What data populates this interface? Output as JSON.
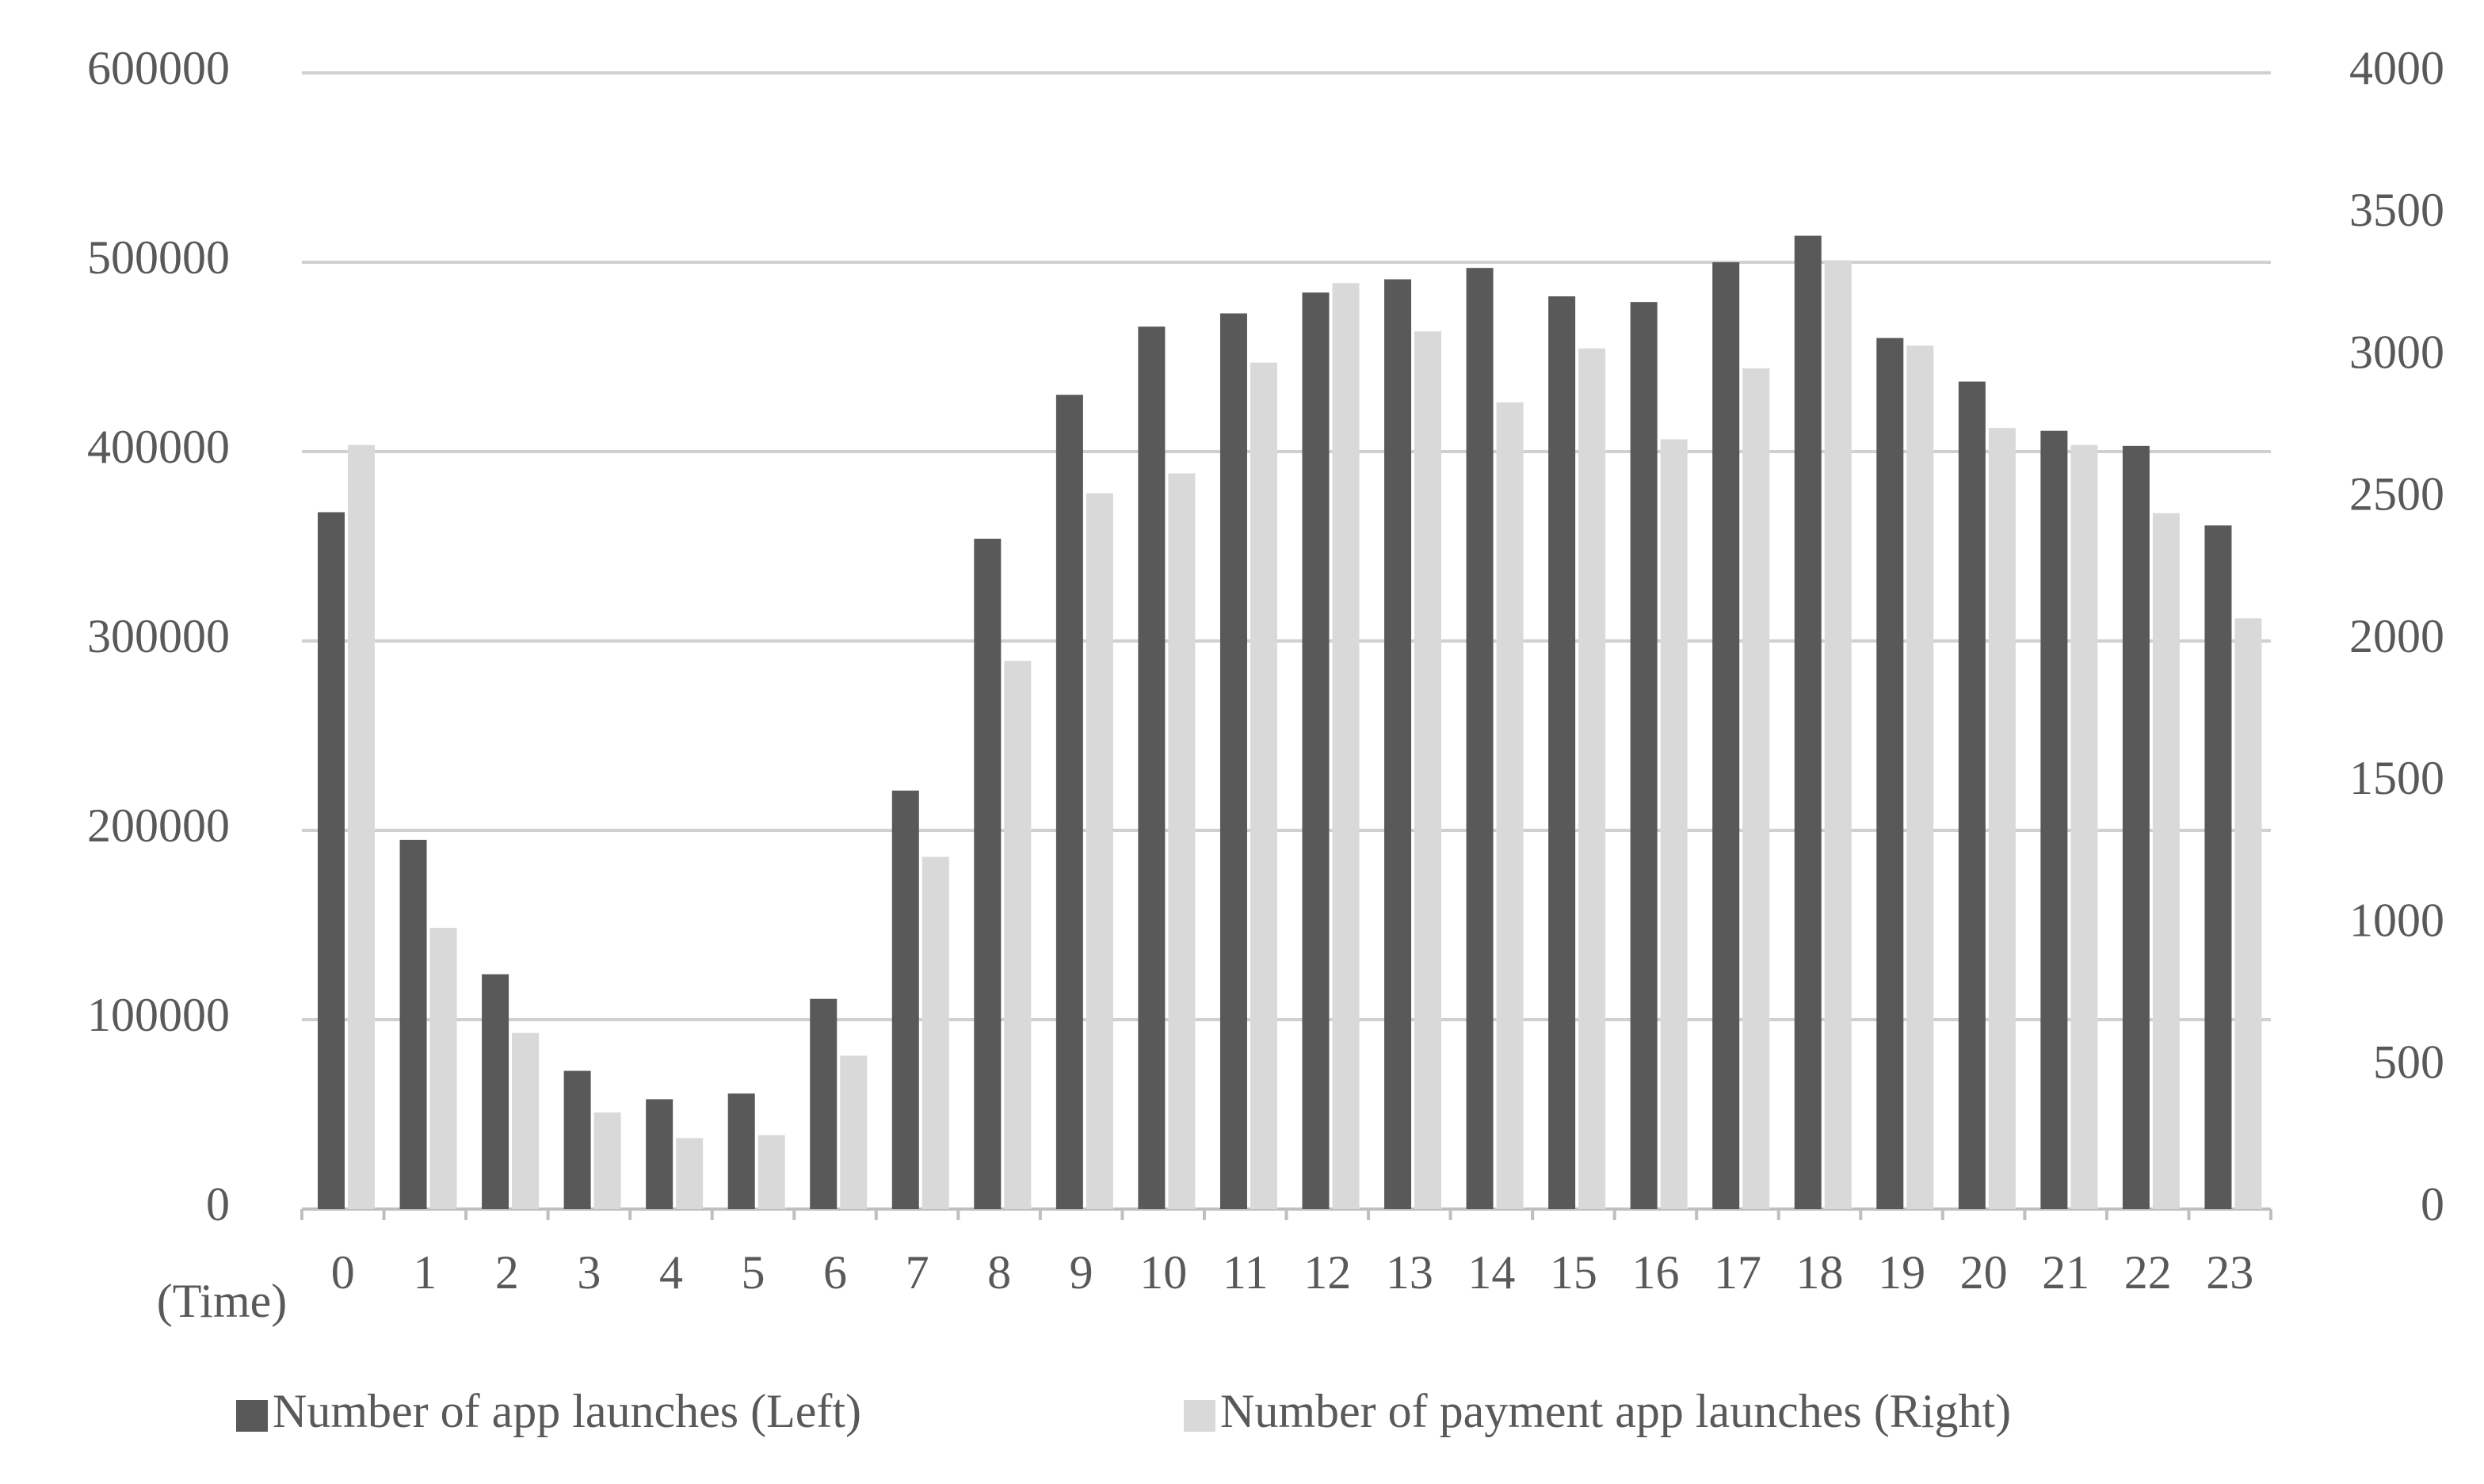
{
  "chart_data": {
    "type": "bar",
    "x_label": "(Time)",
    "categories": [
      "0",
      "1",
      "2",
      "3",
      "4",
      "5",
      "6",
      "7",
      "8",
      "9",
      "10",
      "11",
      "12",
      "13",
      "14",
      "15",
      "16",
      "17",
      "18",
      "19",
      "20",
      "21",
      "22",
      "23"
    ],
    "series": [
      {
        "name": "Number of app launches (Left)",
        "color": "#595959",
        "values": [
          368000,
          195000,
          124000,
          73000,
          58000,
          61000,
          111000,
          221000,
          354000,
          430000,
          466000,
          473000,
          484000,
          491000,
          497000,
          482000,
          479000,
          500000,
          514000,
          460000,
          437000,
          411000,
          403000,
          361000
        ]
      },
      {
        "name": "Number of payment app launches (Right)",
        "color": "#d9d9d9",
        "axis": "y2",
        "values": [
          2690,
          990,
          620,
          340,
          250,
          260,
          540,
          1240,
          1930,
          2520,
          2590,
          2980,
          3260,
          3090,
          2840,
          3030,
          2710,
          2960,
          3340,
          3040,
          2750,
          2690,
          2450,
          2080
        ]
      }
    ],
    "ylim": [
      0,
      600000
    ],
    "yticks": [
      0,
      100000,
      200000,
      300000,
      400000,
      500000,
      600000
    ],
    "y2lim": [
      0,
      4000
    ],
    "y2ticks": [
      0,
      500,
      1000,
      1500,
      2000,
      2500,
      3000,
      3500,
      4000
    ],
    "grid": true,
    "legend": "bottom"
  }
}
